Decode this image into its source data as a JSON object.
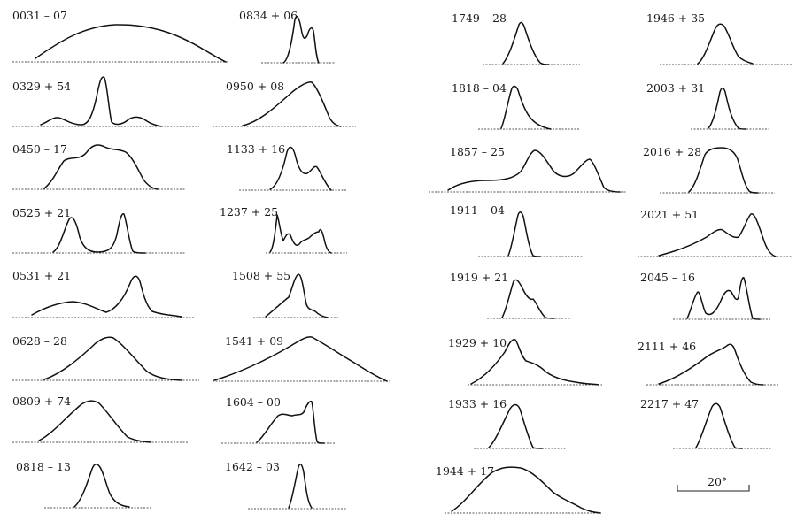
{
  "profiles": [
    {
      "label": "0031 – 07"
    },
    {
      "label": "0834 + 06"
    },
    {
      "label": "0329 + 54"
    },
    {
      "label": "0950 + 08"
    },
    {
      "label": "0450 – 17"
    },
    {
      "label": "1133 + 16"
    },
    {
      "label": "0525 + 21"
    },
    {
      "label": "1237 + 25"
    },
    {
      "label": "0531 + 21"
    },
    {
      "label": "1508 + 55"
    },
    {
      "label": "0628 – 28"
    },
    {
      "label": "1541 + 09"
    },
    {
      "label": "0809 + 74"
    },
    {
      "label": "1604 – 00"
    },
    {
      "label": "0818 – 13"
    },
    {
      "label": "1642 – 03"
    },
    {
      "label": "1749 – 28"
    },
    {
      "label": "1946 + 35"
    },
    {
      "label": "1818 – 04"
    },
    {
      "label": "2003 + 31"
    },
    {
      "label": "1857 – 25"
    },
    {
      "label": "2016 + 28"
    },
    {
      "label": "1911 – 04"
    },
    {
      "label": "2021 + 51"
    },
    {
      "label": "1919 + 21"
    },
    {
      "label": "2045 – 16"
    },
    {
      "label": "1929 + 10"
    },
    {
      "label": "2111 + 46"
    },
    {
      "label": "1933 + 16"
    },
    {
      "label": "2217 + 47"
    },
    {
      "label": "1944 + 17"
    }
  ],
  "scale_bar": {
    "label": "20°"
  },
  "colors": {
    "ink": "#111111",
    "paper": "#ffffff"
  }
}
